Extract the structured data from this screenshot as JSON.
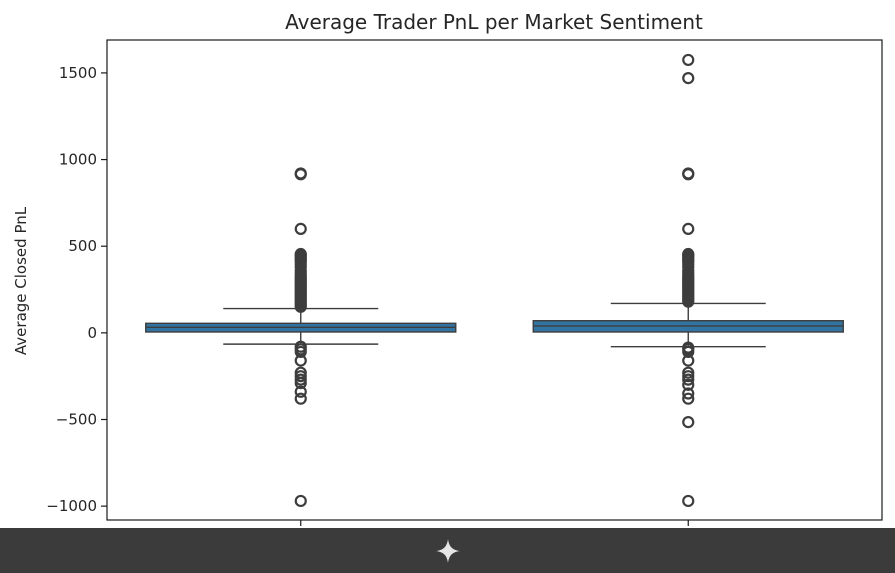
{
  "chart_data": {
    "type": "box",
    "title": "Average Trader PnL per Market Sentiment",
    "ylabel": "Average Closed PnL",
    "xlabel": "",
    "categories": [
      "",
      ""
    ],
    "ylim": [
      -1080,
      1690
    ],
    "yticks": [
      -1000,
      -500,
      0,
      500,
      1000,
      1500
    ],
    "ytick_labels": [
      "−1000",
      "−500",
      "0",
      "500",
      "1000",
      "1500"
    ],
    "grid": false,
    "box_color": "#3274a1",
    "boxes": [
      {
        "category": "",
        "q1": 5,
        "median": 32,
        "q3": 55,
        "whisker_low": -65,
        "whisker_high": 140,
        "outliers": [
          920,
          915,
          600,
          455,
          448,
          440,
          430,
          420,
          410,
          395,
          380,
          360,
          345,
          330,
          320,
          310,
          300,
          290,
          280,
          270,
          260,
          250,
          240,
          230,
          220,
          210,
          200,
          190,
          180,
          170,
          160,
          150,
          -80,
          -95,
          -110,
          -160,
          -230,
          -250,
          -270,
          -290,
          -340,
          -380,
          -970
        ]
      },
      {
        "category": "",
        "q1": 5,
        "median": 40,
        "q3": 70,
        "whisker_low": -80,
        "whisker_high": 170,
        "outliers": [
          1575,
          1470,
          920,
          915,
          600,
          455,
          448,
          440,
          430,
          420,
          410,
          395,
          380,
          360,
          345,
          330,
          320,
          310,
          300,
          290,
          280,
          270,
          260,
          250,
          240,
          230,
          220,
          210,
          200,
          190,
          180,
          -85,
          -95,
          -110,
          -160,
          -230,
          -250,
          -270,
          -300,
          -350,
          -380,
          -515,
          -970
        ]
      }
    ]
  },
  "footer": {
    "icon": "sparkle-icon",
    "background": "#3b3b3b"
  }
}
